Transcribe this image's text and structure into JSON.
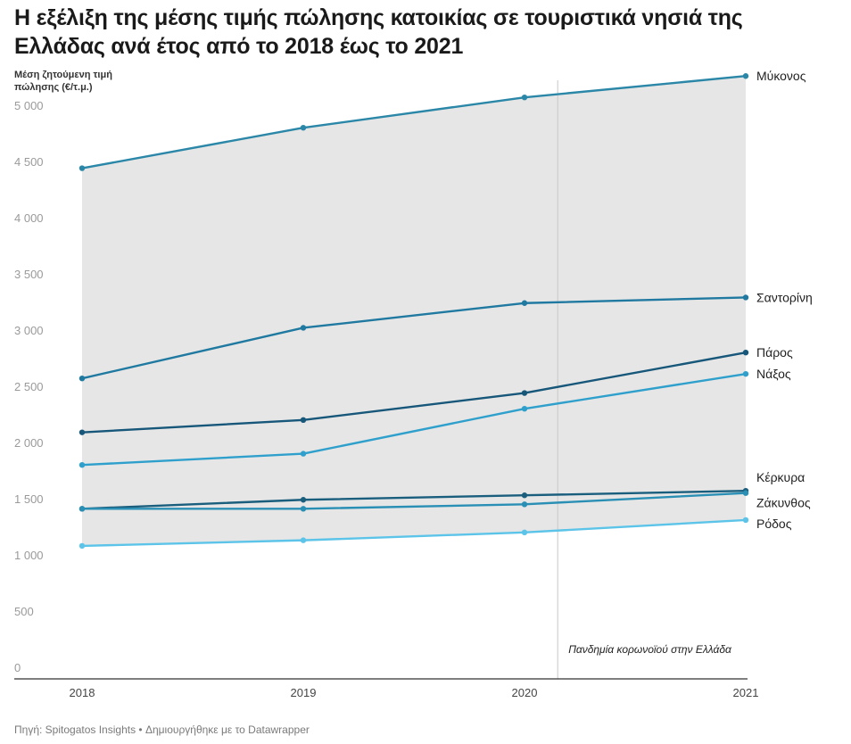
{
  "title": "Η εξέλιξη της μέσης τιμής πώλησης κατοικίας σε τουριστικά νησιά της Ελλάδας ανά έτος από το 2018 έως το 2021",
  "source": "Πηγή: Spitogatos Insights • Δημιουργήθηκε με το Datawrapper",
  "chart_data": {
    "type": "line",
    "ylabel": "Μέση ζητούμενη τιμή πώλησης (€/τ.μ.)",
    "x": [
      "2018",
      "2019",
      "2020",
      "2021"
    ],
    "ylim": [
      0,
      5300
    ],
    "yticks": [
      0,
      500,
      1000,
      1500,
      2000,
      2500,
      3000,
      3500,
      4000,
      4500,
      5000
    ],
    "ytick_labels": [
      "0",
      "500",
      "1 000",
      "1 500",
      "2 000",
      "2 500",
      "3 000",
      "3 500",
      "4 000",
      "4 500",
      "5 000"
    ],
    "grid": false,
    "range_band": true,
    "annotation": {
      "text": "Πανδημία κορωνοϊού στην Ελλάδα",
      "x": 2020.15
    },
    "series": [
      {
        "name": "Μύκονος",
        "values": [
          4440,
          4800,
          5070,
          5260
        ],
        "color": "#2b87a8"
      },
      {
        "name": "Σαντορίνη",
        "values": [
          2570,
          3020,
          3240,
          3290
        ],
        "color": "#1f79a0"
      },
      {
        "name": "Πάρος",
        "values": [
          2090,
          2200,
          2440,
          2800
        ],
        "color": "#17577a"
      },
      {
        "name": "Νάξος",
        "values": [
          1800,
          1900,
          2300,
          2610
        ],
        "color": "#2fa0cc"
      },
      {
        "name": "Κέρκυρα",
        "values": [
          1410,
          1490,
          1530,
          1570
        ],
        "color": "#1a5e7e"
      },
      {
        "name": "Ζάκυνθος",
        "values": [
          1410,
          1410,
          1450,
          1550
        ],
        "color": "#2a8fb5"
      },
      {
        "name": "Ρόδος",
        "values": [
          1080,
          1130,
          1200,
          1310
        ],
        "color": "#5cc4e8"
      }
    ]
  }
}
